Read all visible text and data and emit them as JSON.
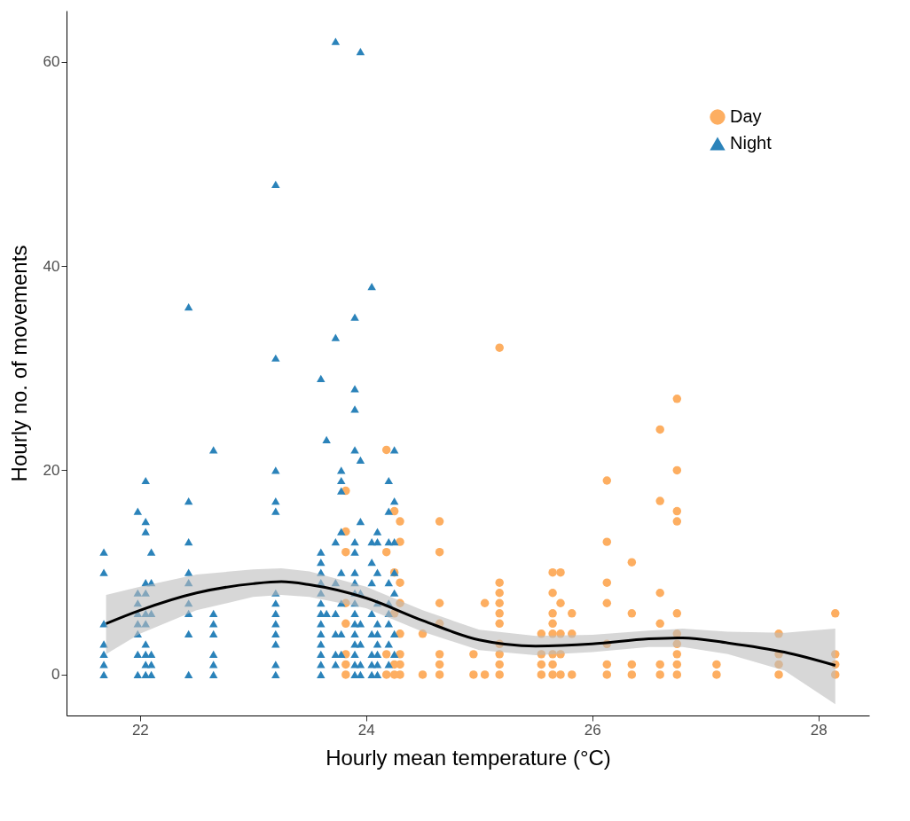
{
  "chart_data": {
    "type": "scatter",
    "xlabel": "Hourly mean temperature (°C)",
    "ylabel": "Hourly no. of movements",
    "xlim": [
      21.35,
      28.45
    ],
    "ylim": [
      -4,
      65
    ],
    "xticks": [
      22,
      24,
      26,
      28
    ],
    "yticks": [
      0,
      20,
      40,
      60
    ],
    "grid": false,
    "legend": "top right",
    "series": [
      {
        "name": "Day",
        "color": "#fdae61",
        "marker": "circle",
        "x": [
          23.82,
          23.82,
          23.82,
          23.82,
          23.82,
          23.82,
          23.82,
          23.82,
          24.18,
          24.18,
          24.18,
          24.18,
          24.25,
          24.25,
          24.25,
          24.25,
          24.25,
          24.3,
          24.3,
          24.3,
          24.3,
          24.3,
          24.3,
          24.3,
          24.3,
          24.5,
          24.5,
          24.65,
          24.65,
          24.65,
          24.65,
          24.65,
          24.65,
          24.65,
          24.95,
          24.95,
          25.05,
          25.05,
          25.18,
          25.18,
          25.18,
          25.18,
          25.18,
          25.18,
          25.18,
          25.18,
          25.18,
          25.18,
          25.55,
          25.55,
          25.55,
          25.55,
          25.65,
          25.65,
          25.65,
          25.65,
          25.65,
          25.65,
          25.65,
          25.65,
          25.72,
          25.72,
          25.72,
          25.72,
          25.72,
          25.82,
          25.82,
          25.82,
          26.13,
          26.13,
          26.13,
          26.13,
          26.13,
          26.13,
          26.13,
          26.35,
          26.35,
          26.35,
          26.35,
          26.6,
          26.6,
          26.6,
          26.6,
          26.6,
          26.6,
          26.75,
          26.75,
          26.75,
          26.75,
          26.75,
          26.75,
          26.75,
          26.75,
          26.75,
          26.75,
          27.1,
          27.1,
          27.65,
          27.65,
          27.65,
          27.65,
          28.15,
          28.15,
          28.15,
          28.15
        ],
        "values": [
          0,
          1,
          2,
          7,
          12,
          18,
          14,
          5,
          22,
          12,
          2,
          0,
          16,
          10,
          6,
          1,
          0,
          15,
          13,
          9,
          7,
          4,
          2,
          1,
          0,
          0,
          4,
          15,
          12,
          7,
          5,
          2,
          1,
          0,
          2,
          0,
          7,
          0,
          32,
          9,
          8,
          7,
          6,
          5,
          3,
          2,
          1,
          0,
          4,
          2,
          0,
          1,
          10,
          8,
          6,
          5,
          4,
          2,
          1,
          0,
          10,
          7,
          4,
          2,
          0,
          6,
          4,
          0,
          19,
          13,
          9,
          7,
          3,
          1,
          0,
          11,
          6,
          1,
          0,
          24,
          17,
          8,
          5,
          1,
          0,
          27,
          20,
          16,
          15,
          6,
          4,
          3,
          2,
          1,
          0,
          1,
          0,
          4,
          2,
          1,
          0,
          6,
          2,
          1,
          0
        ]
      },
      {
        "name": "Night",
        "color": "#2b83ba",
        "marker": "triangle",
        "x": [
          21.68,
          21.68,
          21.68,
          21.68,
          21.68,
          21.68,
          21.68,
          21.98,
          21.98,
          21.98,
          21.98,
          21.98,
          21.98,
          21.98,
          21.98,
          22.05,
          22.05,
          22.05,
          22.05,
          22.05,
          22.05,
          22.05,
          22.05,
          22.05,
          22.05,
          22.05,
          22.1,
          22.1,
          22.1,
          22.1,
          22.1,
          22.1,
          22.43,
          22.43,
          22.43,
          22.43,
          22.43,
          22.43,
          22.43,
          22.43,
          22.43,
          22.65,
          22.65,
          22.65,
          22.65,
          22.65,
          22.65,
          22.65,
          23.2,
          23.2,
          23.2,
          23.2,
          23.2,
          23.2,
          23.2,
          23.2,
          23.2,
          23.2,
          23.2,
          23.2,
          23.2,
          23.6,
          23.6,
          23.6,
          23.6,
          23.6,
          23.6,
          23.6,
          23.6,
          23.6,
          23.6,
          23.6,
          23.6,
          23.6,
          23.6,
          23.65,
          23.65,
          23.73,
          23.73,
          23.73,
          23.73,
          23.73,
          23.73,
          23.73,
          23.73,
          23.78,
          23.78,
          23.78,
          23.78,
          23.78,
          23.78,
          23.78,
          23.78,
          23.9,
          23.9,
          23.9,
          23.9,
          23.9,
          23.9,
          23.9,
          23.9,
          23.9,
          23.9,
          23.9,
          23.9,
          23.9,
          23.9,
          23.9,
          23.9,
          23.9,
          23.95,
          23.95,
          23.95,
          23.95,
          23.95,
          23.95,
          23.95,
          23.95,
          24.05,
          24.05,
          24.05,
          24.05,
          24.05,
          24.05,
          24.05,
          24.05,
          24.05,
          24.1,
          24.1,
          24.1,
          24.1,
          24.1,
          24.1,
          24.1,
          24.1,
          24.1,
          24.1,
          24.2,
          24.2,
          24.2,
          24.2,
          24.2,
          24.2,
          24.2,
          24.2,
          24.2,
          24.25,
          24.25,
          24.25,
          24.25,
          24.25,
          24.25,
          24.25
        ],
        "values": [
          0,
          1,
          2,
          3,
          5,
          10,
          12,
          0,
          2,
          4,
          5,
          6,
          7,
          8,
          16,
          0,
          1,
          2,
          3,
          5,
          6,
          8,
          9,
          14,
          15,
          19,
          0,
          1,
          2,
          6,
          9,
          12,
          0,
          4,
          6,
          7,
          9,
          10,
          13,
          17,
          36,
          0,
          1,
          2,
          4,
          5,
          6,
          22,
          0,
          1,
          3,
          4,
          5,
          6,
          7,
          8,
          16,
          17,
          20,
          31,
          48,
          0,
          1,
          2,
          3,
          4,
          5,
          6,
          7,
          8,
          9,
          10,
          11,
          12,
          29,
          23,
          6,
          1,
          2,
          4,
          6,
          9,
          13,
          62,
          33,
          20,
          19,
          18,
          14,
          10,
          7,
          4,
          2,
          0,
          1,
          2,
          3,
          4,
          5,
          6,
          7,
          8,
          9,
          10,
          12,
          13,
          28,
          35,
          26,
          22,
          61,
          21,
          15,
          8,
          5,
          3,
          1,
          0,
          38,
          13,
          11,
          9,
          6,
          4,
          2,
          1,
          0,
          0,
          1,
          2,
          3,
          4,
          5,
          7,
          10,
          13,
          14,
          13,
          9,
          7,
          6,
          5,
          3,
          1,
          19,
          16,
          22,
          17,
          13,
          10,
          8,
          4,
          2
        ]
      },
      {
        "type": "line",
        "color": "#000000",
        "x": [
          21.7,
          22,
          22.5,
          23,
          23.25,
          23.5,
          24,
          24.5,
          25,
          25.5,
          26,
          26.5,
          26.8,
          27.2,
          27.7,
          28.15
        ],
        "values": [
          5,
          6.3,
          8,
          8.9,
          9.1,
          8.8,
          7.5,
          5.3,
          3.4,
          2.8,
          3,
          3.5,
          3.6,
          3.1,
          2.2,
          0.9
        ],
        "lower": [
          2,
          4,
          6.3,
          7.6,
          7.8,
          7.6,
          6.5,
          4.2,
          2.4,
          1.9,
          2.2,
          2.7,
          2.7,
          2,
          0.4,
          -2.9
        ],
        "upper": [
          7.8,
          8.6,
          9.8,
          10.3,
          10.4,
          10.1,
          8.6,
          6.3,
          4.4,
          3.8,
          3.9,
          4.3,
          4.5,
          4.2,
          4.1,
          4.5
        ]
      }
    ]
  }
}
